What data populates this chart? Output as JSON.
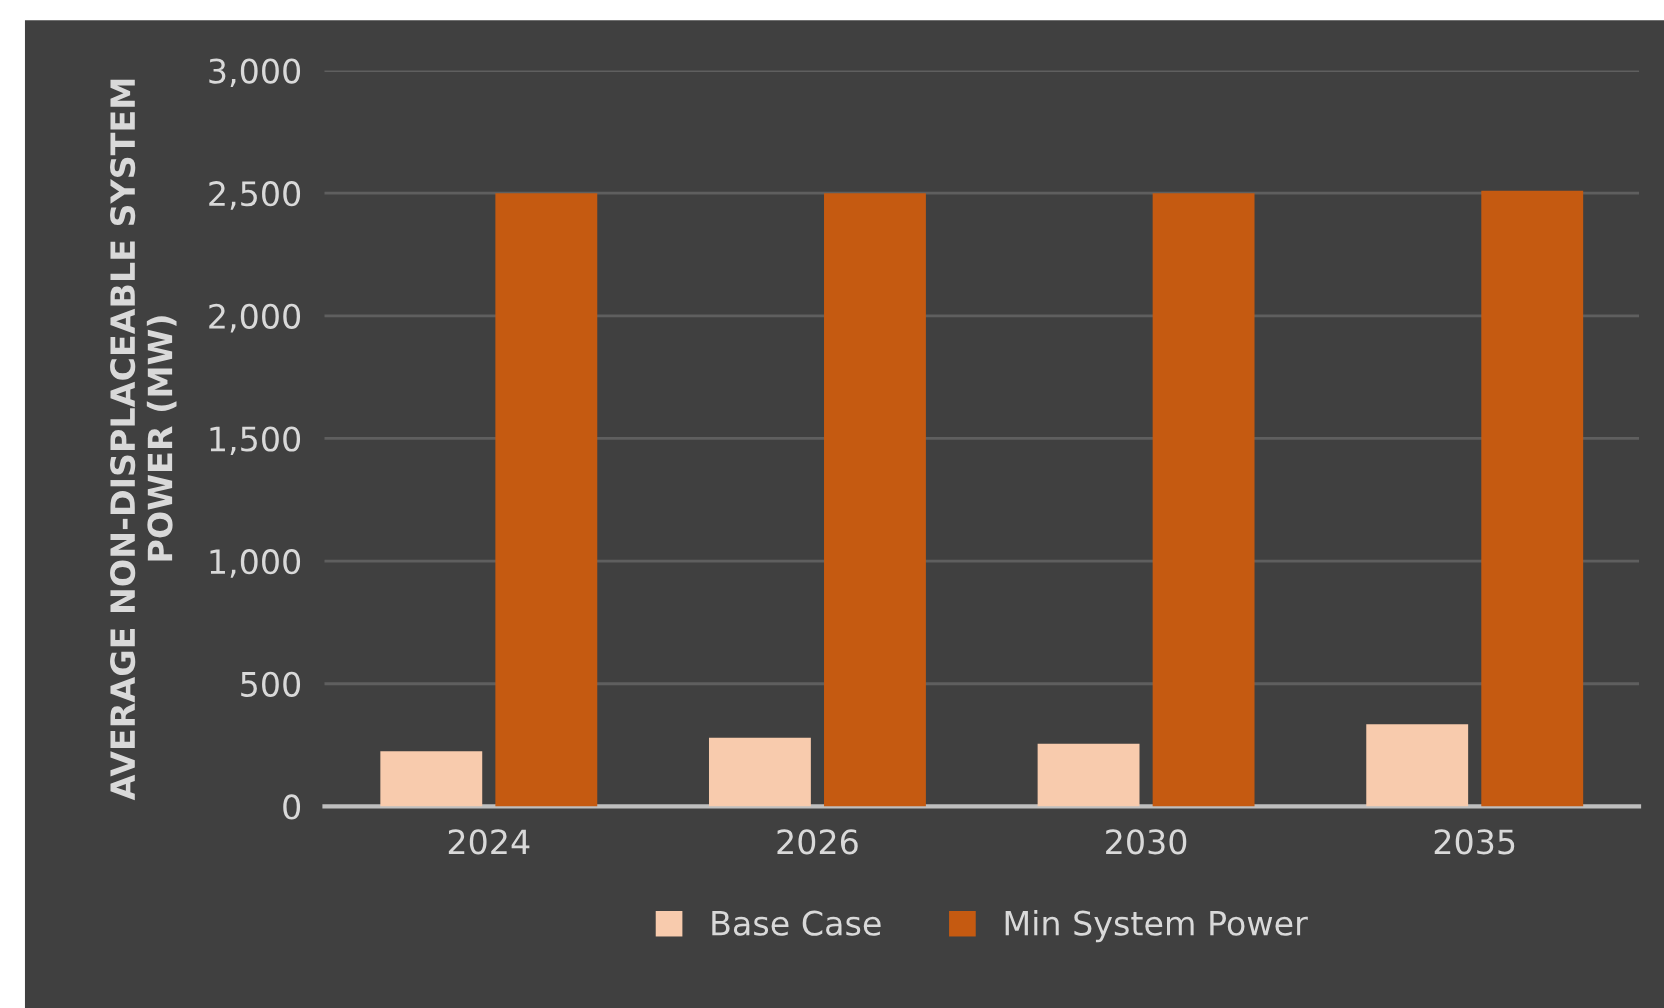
{
  "chart_data": {
    "type": "bar",
    "ylabel": "AVERAGE NON-DISPLACEABLE SYSTEM\nPOWER (MW)",
    "categories": [
      "2024",
      "2026",
      "2030",
      "2035"
    ],
    "series": [
      {
        "name": "Base Case",
        "color": "#f8cbad",
        "values": [
          225,
          280,
          255,
          335
        ]
      },
      {
        "name": "Min System Power",
        "color": "#c55a11",
        "values": [
          2500,
          2500,
          2500,
          2510
        ]
      }
    ],
    "ylim": [
      0,
      3000
    ],
    "yticks": [
      {
        "value": 0,
        "label": "0"
      },
      {
        "value": 500,
        "label": "500"
      },
      {
        "value": 1000,
        "label": "1,000"
      },
      {
        "value": 1500,
        "label": "1,500"
      },
      {
        "value": 2000,
        "label": "2,000"
      },
      {
        "value": 2500,
        "label": "2,500"
      },
      {
        "value": 3000,
        "label": "3,000"
      }
    ],
    "grid": "y",
    "legend": "bottom"
  }
}
